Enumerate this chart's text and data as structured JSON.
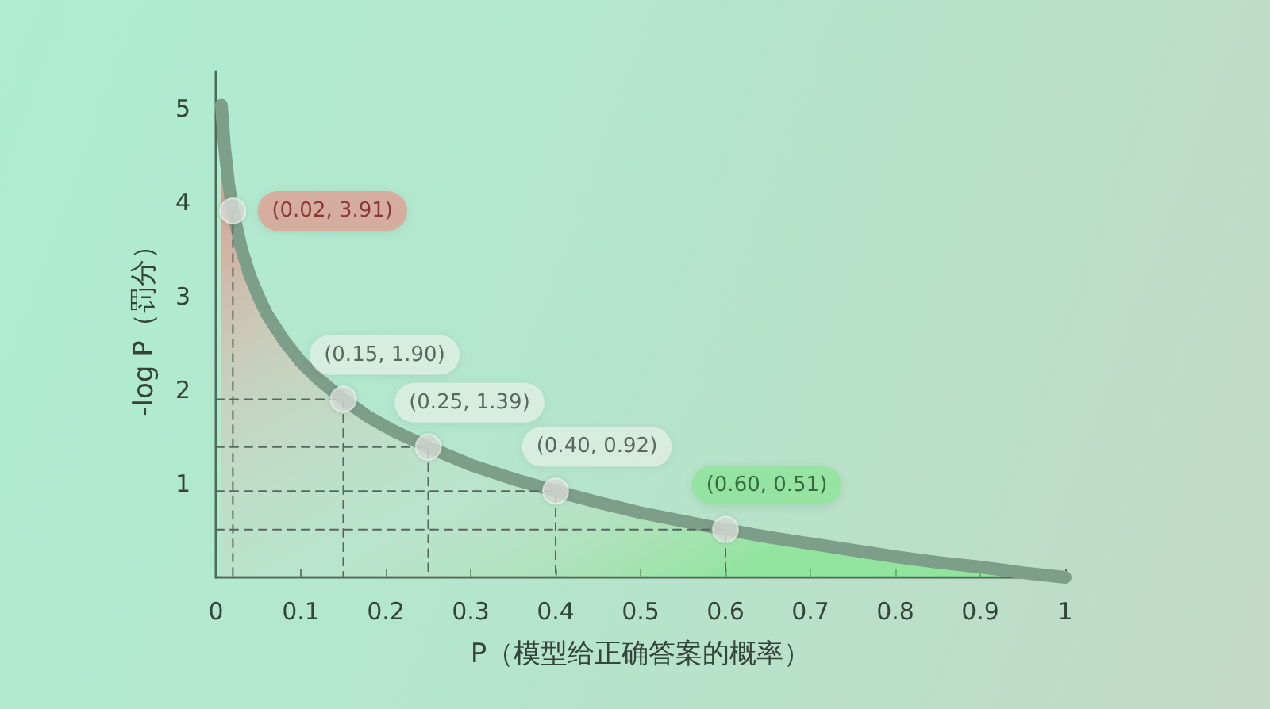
{
  "chart_data": {
    "type": "area",
    "xlabel": "P（模型给正确答案的概率）",
    "ylabel": "-log P（罚分）",
    "xlim": [
      0,
      1
    ],
    "ylim": [
      0,
      5.4
    ],
    "xticks": [
      0,
      0.1,
      0.2,
      0.3,
      0.4,
      0.5,
      0.6,
      0.7,
      0.8,
      0.9,
      1
    ],
    "yticks": [
      1,
      2,
      3,
      4,
      5
    ],
    "grid": false,
    "line_style": "solid",
    "series": [
      {
        "color": "#7d9e89",
        "marker": "none",
        "x": [
          0.0065,
          0.01,
          0.015,
          0.02,
          0.03,
          0.04,
          0.05,
          0.06,
          0.08,
          0.1,
          0.12,
          0.15,
          0.18,
          0.21,
          0.25,
          0.3,
          0.35,
          0.4,
          0.45,
          0.5,
          0.55,
          0.6,
          0.65,
          0.7,
          0.75,
          0.8,
          0.85,
          0.9,
          0.95,
          1
        ],
        "values": [
          5.04,
          4.61,
          4.2,
          3.91,
          3.51,
          3.22,
          3.0,
          2.81,
          2.53,
          2.3,
          2.12,
          1.9,
          1.71,
          1.56,
          1.39,
          1.2,
          1.05,
          0.92,
          0.8,
          0.69,
          0.6,
          0.51,
          0.43,
          0.36,
          0.29,
          0.22,
          0.16,
          0.11,
          0.05,
          0
        ]
      },
      {
        "type": "line",
        "color": "#55685b",
        "marker": "none",
        "line_style": "dashed",
        "x": [
          0.02,
          0.02,
          null,
          0,
          0.15,
          0.15,
          null,
          0,
          0.25,
          0.25,
          null,
          0,
          0.4,
          0.4,
          null,
          0,
          0.6,
          0.6
        ],
        "values": [
          3.91,
          0,
          null,
          1.9,
          1.9,
          0,
          null,
          1.39,
          1.39,
          0,
          null,
          0.92,
          0.92,
          0,
          null,
          0.51,
          0.51,
          0
        ]
      },
      {
        "type": "scatter",
        "color": "#d7dcd7",
        "marker": "circle",
        "x": [
          0.02,
          0.15,
          0.25,
          0.4,
          0.6
        ],
        "values": [
          3.91,
          1.9,
          1.39,
          0.92,
          0.51
        ],
        "value_labels": [
          "(0.02, 3.91)",
          "(0.15, 1.90)",
          "(0.25, 1.39)",
          "(0.40, 0.92)",
          "(0.60, 0.51)"
        ]
      }
    ]
  }
}
